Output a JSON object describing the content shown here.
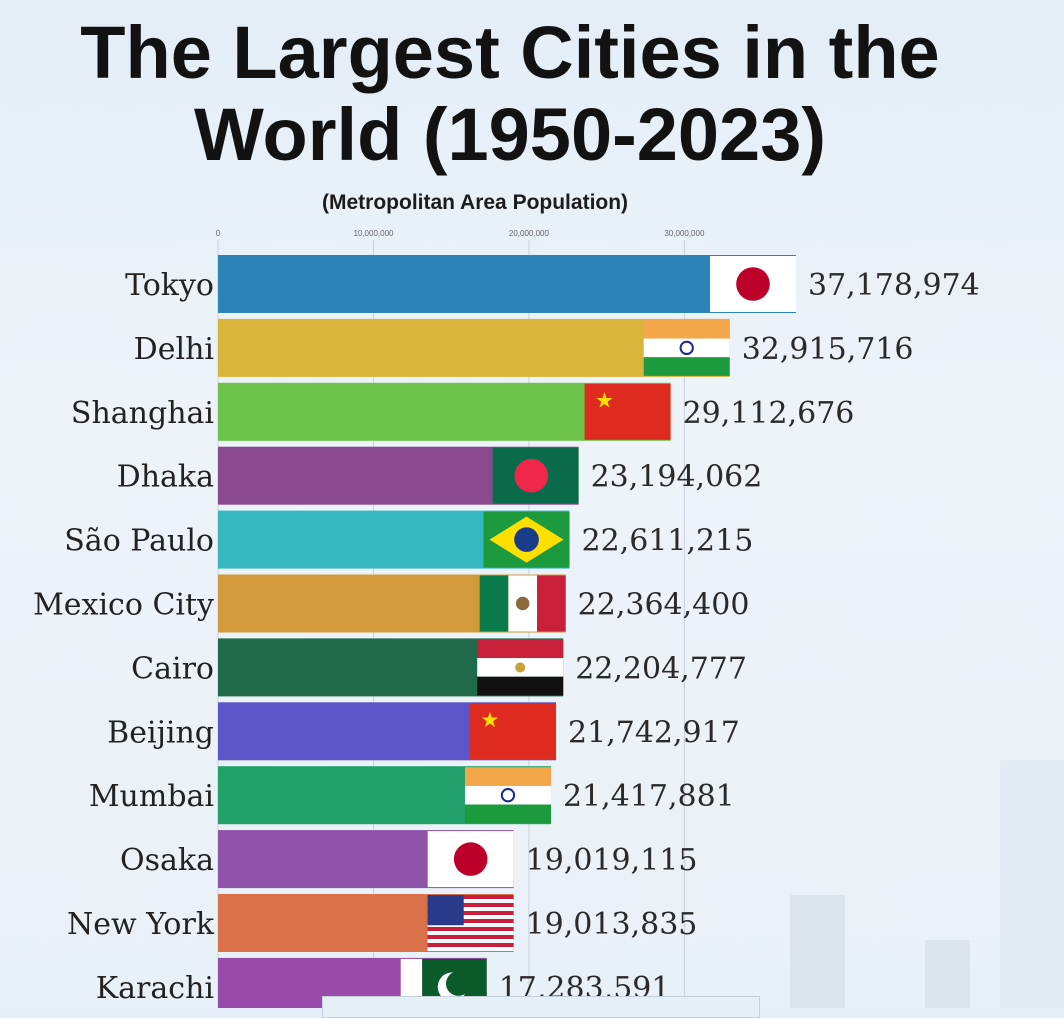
{
  "chart_data": {
    "type": "bar",
    "orientation": "horizontal",
    "title": "The Largest Cities in the World (1950-2023)",
    "subtitle": "(Metropolitan Area Population)",
    "xlim": [
      0,
      38000000
    ],
    "ticks": [
      0,
      10000000,
      20000000,
      30000000
    ],
    "tick_labels": [
      "0",
      "10,000,000",
      "20,000,000",
      "30,000,000"
    ],
    "categories": [
      "Tokyo",
      "Delhi",
      "Shanghai",
      "Dhaka",
      "São Paulo",
      "Mexico City",
      "Cairo",
      "Beijing",
      "Mumbai",
      "Osaka",
      "New York",
      "Karachi"
    ],
    "values": [
      37178974,
      32915716,
      29112676,
      23194062,
      22611215,
      22364400,
      22204777,
      21742917,
      21417881,
      19019115,
      19013835,
      17283591
    ],
    "value_labels": [
      "37,178,974",
      "32,915,716",
      "29,112,676",
      "23,194,062",
      "22,611,215",
      "22,364,400",
      "22,204,777",
      "21,742,917",
      "21,417,881",
      "19,019,115",
      "19,013,835",
      "17,283,591"
    ],
    "colors": [
      "#2c84b8",
      "#d9b53b",
      "#6cc24a",
      "#8b4a8f",
      "#36b8c0",
      "#d29a3a",
      "#1e6a4a",
      "#5b55c7",
      "#22a16a",
      "#8e52a8",
      "#d9714a",
      "#9a4aa8"
    ],
    "flags": [
      "japan-flag",
      "india-flag",
      "china-flag",
      "bangladesh-flag",
      "brazil-flag",
      "mexico-flag",
      "egypt-flag",
      "china-flag",
      "india-flag",
      "japan-flag",
      "usa-flag",
      "pakistan-flag"
    ]
  }
}
